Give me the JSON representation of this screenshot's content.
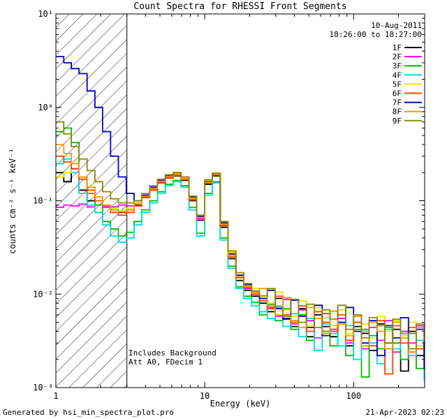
{
  "title": "Count Spectra for RHESSI Front Segments",
  "annotations": {
    "date": "10-Aug-2011",
    "time_range": "18:26:00 to 18:27:00",
    "note_line1": "Includes Background",
    "note_line2": "Att A0, FDecim 1"
  },
  "footer": {
    "left": "Generated by hsi_min_spectra_plot.pro",
    "right": "21-Apr-2023 02:23"
  },
  "chart_data": {
    "type": "line",
    "step": true,
    "title": "Count Spectra for RHESSI Front Segments",
    "xlabel": "Energy (keV)",
    "ylabel": "counts cm⁻² s⁻¹ keV⁻¹",
    "xscale": "log",
    "yscale": "log",
    "xlim": [
      1,
      300
    ],
    "ylim": [
      0.001,
      10
    ],
    "xtick_values": [
      1,
      10,
      100
    ],
    "xtick_labels": [
      "1",
      "10",
      "100"
    ],
    "ytick_exponents": [
      -3,
      -2,
      -1,
      0,
      1
    ],
    "ytick_labels": [
      "10⁻³",
      "10⁻²",
      "10⁻¹",
      "10⁰",
      "10¹"
    ],
    "hatched_region_kev": [
      1,
      3
    ],
    "legend_position": "top-right",
    "energies": [
      1.0,
      1.13,
      1.27,
      1.43,
      1.62,
      1.83,
      2.06,
      2.33,
      2.63,
      2.97,
      3.35,
      3.78,
      4.27,
      4.82,
      5.44,
      6.14,
      6.93,
      7.82,
      8.83,
      9.97,
      11.25,
      12.7,
      14.34,
      16.19,
      18.27,
      20.63,
      23.29,
      26.3,
      29.69,
      33.52,
      37.84,
      42.72,
      48.24,
      54.46,
      61.48,
      69.41,
      78.36,
      88.47,
      99.88,
      112.8,
      127.3,
      143.7,
      162.3,
      183.2,
      206.8,
      233.5,
      263.6,
      297.6
    ],
    "series": [
      {
        "name": "1F",
        "color": "#000000",
        "values": [
          0.2,
          0.16,
          0.22,
          0.13,
          0.1,
          0.09,
          0.085,
          0.08,
          0.075,
          0.08,
          0.09,
          0.11,
          0.13,
          0.155,
          0.175,
          0.185,
          0.165,
          0.1,
          0.062,
          0.15,
          0.185,
          0.052,
          0.024,
          0.014,
          0.011,
          0.0095,
          0.008,
          0.0065,
          0.009,
          0.0055,
          0.0045,
          0.007,
          0.0035,
          0.006,
          0.0045,
          0.0035,
          0.0055,
          0.0028,
          0.0045,
          0.0038,
          0.0025,
          0.0048,
          0.003,
          0.0042,
          0.0015,
          0.004,
          0.0022,
          0.0035
        ]
      },
      {
        "name": "2F",
        "color": "#ff00ff",
        "values": [
          0.085,
          0.09,
          0.088,
          0.092,
          0.086,
          0.09,
          0.088,
          0.086,
          0.09,
          0.088,
          0.095,
          0.115,
          0.135,
          0.16,
          0.18,
          0.19,
          0.17,
          0.105,
          0.065,
          0.16,
          0.19,
          0.055,
          0.027,
          0.016,
          0.0115,
          0.01,
          0.009,
          0.0072,
          0.0058,
          0.0088,
          0.0048,
          0.0068,
          0.0052,
          0.0034,
          0.0062,
          0.0042,
          0.0055,
          0.003,
          0.005,
          0.0026,
          0.0044,
          0.0032,
          0.0052,
          0.0024,
          0.004,
          0.003,
          0.0046,
          0.002
        ]
      },
      {
        "name": "3F",
        "color": "#00bb00",
        "values": [
          0.55,
          0.6,
          0.42,
          0.18,
          0.12,
          0.09,
          0.06,
          0.05,
          0.042,
          0.046,
          0.06,
          0.08,
          0.1,
          0.125,
          0.15,
          0.165,
          0.145,
          0.085,
          0.045,
          0.12,
          0.16,
          0.04,
          0.02,
          0.012,
          0.0095,
          0.0082,
          0.006,
          0.0078,
          0.0052,
          0.007,
          0.0042,
          0.006,
          0.0032,
          0.0055,
          0.004,
          0.0028,
          0.005,
          0.0022,
          0.0042,
          0.0013,
          0.0036,
          0.0026,
          0.0044,
          0.003,
          0.002,
          0.0038,
          0.0016,
          0.003
        ]
      },
      {
        "name": "4F",
        "color": "#00dddd",
        "values": [
          0.25,
          0.28,
          0.2,
          0.12,
          0.09,
          0.075,
          0.055,
          0.042,
          0.036,
          0.04,
          0.055,
          0.075,
          0.095,
          0.12,
          0.145,
          0.16,
          0.14,
          0.08,
          0.042,
          0.115,
          0.155,
          0.038,
          0.019,
          0.0115,
          0.009,
          0.0075,
          0.0065,
          0.0055,
          0.0075,
          0.0045,
          0.0062,
          0.0035,
          0.0055,
          0.0025,
          0.0048,
          0.0038,
          0.0028,
          0.0046,
          0.002,
          0.004,
          0.003,
          0.0018,
          0.0042,
          0.0026,
          0.0036,
          0.0022,
          0.0032,
          0.0012
        ]
      },
      {
        "name": "5F",
        "color": "#e6e600",
        "values": [
          0.18,
          0.2,
          0.22,
          0.18,
          0.14,
          0.11,
          0.09,
          0.082,
          0.078,
          0.082,
          0.095,
          0.115,
          0.14,
          0.165,
          0.185,
          0.195,
          0.175,
          0.11,
          0.07,
          0.165,
          0.195,
          0.06,
          0.028,
          0.017,
          0.013,
          0.0115,
          0.0095,
          0.008,
          0.0105,
          0.0068,
          0.0058,
          0.0085,
          0.0046,
          0.0072,
          0.0056,
          0.0046,
          0.0068,
          0.0038,
          0.0058,
          0.0048,
          0.0034,
          0.0058,
          0.004,
          0.0052,
          0.0036,
          0.005,
          0.0028,
          0.0044
        ]
      },
      {
        "name": "6F",
        "color": "#ff4500",
        "values": [
          0.3,
          0.26,
          0.22,
          0.17,
          0.13,
          0.1,
          0.085,
          0.075,
          0.07,
          0.075,
          0.088,
          0.108,
          0.13,
          0.155,
          0.175,
          0.188,
          0.168,
          0.102,
          0.063,
          0.155,
          0.188,
          0.054,
          0.025,
          0.015,
          0.0118,
          0.01,
          0.0085,
          0.007,
          0.0095,
          0.006,
          0.005,
          0.0075,
          0.004,
          0.0065,
          0.005,
          0.004,
          0.006,
          0.0032,
          0.005,
          0.0042,
          0.0028,
          0.0052,
          0.0014,
          0.0046,
          0.003,
          0.0044,
          0.0026,
          0.0038
        ]
      },
      {
        "name": "7F",
        "color": "#0000cc",
        "values": [
          3.5,
          3.0,
          2.6,
          2.3,
          1.5,
          1.0,
          0.55,
          0.3,
          0.18,
          0.12,
          0.1,
          0.115,
          0.14,
          0.165,
          0.185,
          0.2,
          0.18,
          0.11,
          0.068,
          0.16,
          0.19,
          0.058,
          0.027,
          0.016,
          0.0128,
          0.0108,
          0.009,
          0.011,
          0.007,
          0.0054,
          0.0086,
          0.0058,
          0.0044,
          0.0076,
          0.0036,
          0.0066,
          0.005,
          0.0072,
          0.004,
          0.003,
          0.0052,
          0.0022,
          0.0046,
          0.0034,
          0.0056,
          0.0024,
          0.0042,
          0.0016
        ]
      },
      {
        "name": "8F",
        "color": "#ff9900",
        "values": [
          0.4,
          0.32,
          0.25,
          0.18,
          0.14,
          0.11,
          0.09,
          0.08,
          0.076,
          0.08,
          0.092,
          0.112,
          0.136,
          0.162,
          0.182,
          0.192,
          0.172,
          0.106,
          0.066,
          0.158,
          0.192,
          0.056,
          0.026,
          0.0155,
          0.0122,
          0.0104,
          0.0115,
          0.0075,
          0.006,
          0.0092,
          0.0052,
          0.0044,
          0.0072,
          0.0055,
          0.0038,
          0.0066,
          0.0048,
          0.0036,
          0.0058,
          0.0028,
          0.005,
          0.004,
          0.0026,
          0.005,
          0.0034,
          0.0024,
          0.0044,
          0.0032
        ]
      },
      {
        "name": "9F",
        "color": "#8b8b00",
        "values": [
          0.7,
          0.52,
          0.38,
          0.28,
          0.21,
          0.16,
          0.125,
          0.105,
          0.095,
          0.095,
          0.1,
          0.12,
          0.145,
          0.17,
          0.19,
          0.2,
          0.18,
          0.112,
          0.07,
          0.168,
          0.198,
          0.06,
          0.029,
          0.017,
          0.0125,
          0.0108,
          0.0096,
          0.0115,
          0.0072,
          0.0058,
          0.0088,
          0.005,
          0.0078,
          0.0044,
          0.0068,
          0.0054,
          0.0076,
          0.0042,
          0.006,
          0.0034,
          0.0056,
          0.0046,
          0.003,
          0.0054,
          0.0038,
          0.0026,
          0.0048,
          0.0036
        ]
      }
    ]
  }
}
